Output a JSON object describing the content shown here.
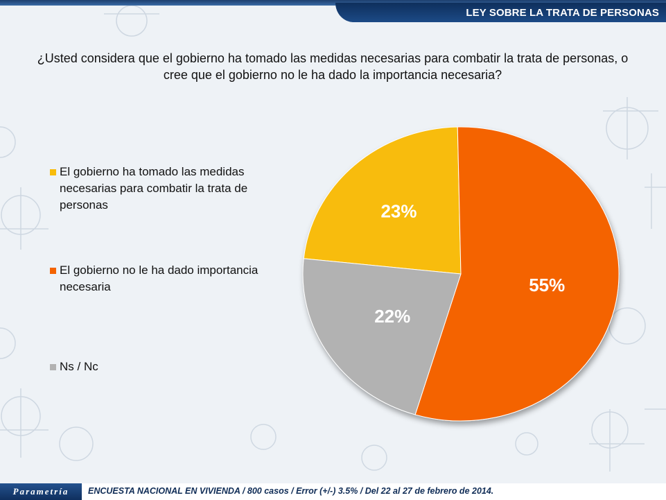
{
  "header": {
    "title": "LEY SOBRE LA TRATA DE PERSONAS"
  },
  "question": "¿Usted considera que el gobierno ha tomado las medidas necesarias para combatir la trata de personas, o cree que el gobierno no le ha dado la importancia necesaria?",
  "chart_data": {
    "type": "pie",
    "title": "",
    "slices": [
      {
        "label": "El gobierno ha tomado las medidas necesarias para combatir la trata de personas",
        "value": 23,
        "display": "23%",
        "color": "#f8bc0b"
      },
      {
        "label": "El gobierno no le ha dado importancia necesaria",
        "value": 55,
        "display": "55%",
        "color": "#f46300"
      },
      {
        "label": "Ns / Nc",
        "value": 22,
        "display": "22%",
        "color": "#b2b2b2"
      }
    ],
    "legend_position": "left"
  },
  "footer": {
    "logo": "Parametría",
    "text": "ENCUESTA NACIONAL EN VIVIENDA / 800 casos / Error (+/-)  3.5% / Del 22 al 27 de febrero de 2014."
  }
}
